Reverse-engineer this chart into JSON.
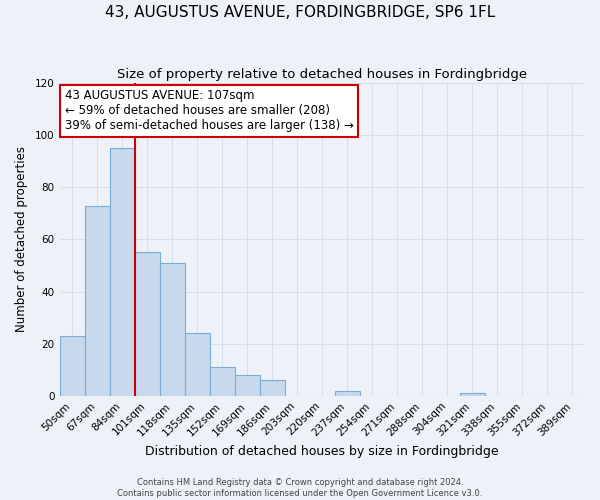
{
  "title": "43, AUGUSTUS AVENUE, FORDINGBRIDGE, SP6 1FL",
  "subtitle": "Size of property relative to detached houses in Fordingbridge",
  "xlabel": "Distribution of detached houses by size in Fordingbridge",
  "ylabel": "Number of detached properties",
  "footer_line1": "Contains HM Land Registry data © Crown copyright and database right 2024.",
  "footer_line2": "Contains public sector information licensed under the Open Government Licence v3.0.",
  "bin_labels": [
    "50sqm",
    "67sqm",
    "84sqm",
    "101sqm",
    "118sqm",
    "135sqm",
    "152sqm",
    "169sqm",
    "186sqm",
    "203sqm",
    "220sqm",
    "237sqm",
    "254sqm",
    "271sqm",
    "288sqm",
    "304sqm",
    "321sqm",
    "338sqm",
    "355sqm",
    "372sqm",
    "389sqm"
  ],
  "bar_values": [
    23,
    73,
    95,
    55,
    51,
    24,
    11,
    8,
    6,
    0,
    0,
    2,
    0,
    0,
    0,
    0,
    1,
    0,
    0,
    0,
    0
  ],
  "bar_color": "#c8d8ed",
  "bar_edge_color": "#7aadd4",
  "ylim": [
    0,
    120
  ],
  "yticks": [
    0,
    20,
    40,
    60,
    80,
    100,
    120
  ],
  "vline_bin_index": 3,
  "annotation_title": "43 AUGUSTUS AVENUE: 107sqm",
  "annotation_line1": "← 59% of detached houses are smaller (208)",
  "annotation_line2": "39% of semi-detached houses are larger (138) →",
  "annotation_box_color": "#ffffff",
  "annotation_box_edge": "#cc0000",
  "vline_color": "#cc0000",
  "grid_color": "#d5e0ee",
  "background_color": "#eef2f8",
  "title_fontsize": 11,
  "subtitle_fontsize": 9.5,
  "xlabel_fontsize": 9,
  "ylabel_fontsize": 8.5,
  "tick_fontsize": 7.5,
  "annotation_fontsize": 8.5
}
